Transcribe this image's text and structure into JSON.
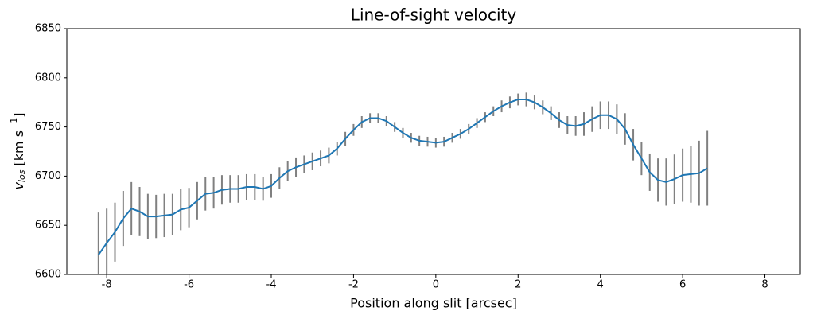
{
  "chart_data": {
    "type": "errorbar-line",
    "title": "Line-of-sight velocity",
    "x_label": "Position along slit [arcsec]",
    "y_label": {
      "symbol": "v",
      "subscript": "los",
      "unit": " [km s",
      "superscript": "−1",
      "end": "]"
    },
    "xlim": [
      -8.97,
      8.86
    ],
    "ylim": [
      6600,
      6850
    ],
    "xticks": [
      -8,
      -6,
      -4,
      -2,
      0,
      2,
      4,
      6,
      8
    ],
    "yticks": [
      6600,
      6650,
      6700,
      6750,
      6800,
      6850
    ],
    "x": [
      -8.2,
      -8.0,
      -7.8,
      -7.6,
      -7.4,
      -7.2,
      -7.0,
      -6.8,
      -6.6,
      -6.4,
      -6.2,
      -6.0,
      -5.8,
      -5.6,
      -5.4,
      -5.2,
      -5.0,
      -4.8,
      -4.6,
      -4.4,
      -4.2,
      -4.0,
      -3.8,
      -3.6,
      -3.4,
      -3.2,
      -3.0,
      -2.8,
      -2.6,
      -2.4,
      -2.2,
      -2.0,
      -1.8,
      -1.6,
      -1.4,
      -1.2,
      -1.0,
      -0.8,
      -0.6,
      -0.4,
      -0.2,
      0.0,
      0.2,
      0.4,
      0.6,
      0.8,
      1.0,
      1.2,
      1.4,
      1.6,
      1.8,
      2.0,
      2.2,
      2.4,
      2.6,
      2.8,
      3.0,
      3.2,
      3.4,
      3.6,
      3.8,
      4.0,
      4.2,
      4.4,
      4.6,
      4.8,
      5.0,
      5.2,
      5.4,
      5.6,
      5.8,
      6.0,
      6.2,
      6.4,
      6.6
    ],
    "series": [
      {
        "color": "#1f77b4",
        "error_color": "#808080",
        "values": [
          6620,
          6632,
          6643,
          6657,
          6667,
          6664,
          6659,
          6659,
          6660,
          6661,
          6666,
          6668,
          6675,
          6682,
          6683,
          6686,
          6687,
          6687,
          6689,
          6689,
          6687,
          6690,
          6698,
          6705,
          6709,
          6712,
          6715,
          6718,
          6721,
          6728,
          6738,
          6747,
          6755,
          6759,
          6759,
          6756,
          6750,
          6744,
          6739,
          6736,
          6735,
          6734,
          6735,
          6739,
          6743,
          6748,
          6754,
          6760,
          6766,
          6771,
          6775,
          6778,
          6778,
          6775,
          6770,
          6764,
          6757,
          6752,
          6751,
          6753,
          6758,
          6762,
          6762,
          6758,
          6748,
          6732,
          6718,
          6704,
          6696,
          6694,
          6697,
          6701,
          6702,
          6703,
          6708
        ],
        "errors": [
          43,
          35,
          30,
          28,
          27,
          25,
          23,
          22,
          22,
          21,
          21,
          20,
          19,
          17,
          16,
          15,
          14,
          14,
          13,
          13,
          12,
          12,
          11,
          10,
          10,
          9,
          9,
          8,
          8,
          7,
          7,
          6,
          6,
          5,
          5,
          5,
          5,
          5,
          5,
          5,
          5,
          5,
          5,
          5,
          5,
          5,
          5,
          5,
          5,
          6,
          6,
          6,
          7,
          7,
          7,
          7,
          8,
          9,
          10,
          12,
          13,
          14,
          14,
          15,
          16,
          16,
          17,
          19,
          22,
          24,
          25,
          27,
          29,
          33,
          38
        ]
      }
    ]
  }
}
